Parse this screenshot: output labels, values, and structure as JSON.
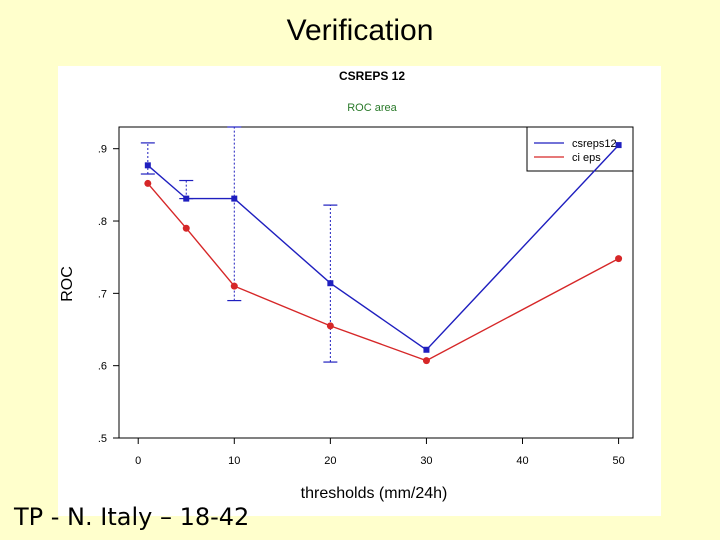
{
  "slide": {
    "title": "Verification",
    "footer": "TP - N. Italy – 18-42"
  },
  "chart_data": {
    "type": "line",
    "title": "CSREPS 12",
    "subtitle": "ROC area",
    "xlabel": "thresholds (mm/24h)",
    "ylabel": "ROC",
    "xlim": [
      -2,
      51.5
    ],
    "ylim": [
      0.5,
      0.93
    ],
    "x_ticks": [
      0,
      10,
      20,
      30,
      40,
      50
    ],
    "y_ticks": [
      0.5,
      0.6,
      0.7,
      0.8,
      0.9
    ],
    "y_tick_labels": [
      ".5",
      ".6",
      ".7",
      ".8",
      ".9"
    ],
    "grid": false,
    "legend": "top-right",
    "series": [
      {
        "name": "csreps12",
        "color": "#1f1fbf",
        "x": [
          1,
          5,
          10,
          20,
          30,
          50
        ],
        "y": [
          0.877,
          0.831,
          0.831,
          0.714,
          0.622,
          0.905
        ]
      },
      {
        "name": "ci eps",
        "color": "#d62728",
        "x": [
          1,
          5,
          10,
          20,
          30,
          50
        ],
        "y": [
          0.852,
          0.79,
          0.71,
          0.655,
          0.607,
          0.748
        ]
      }
    ],
    "error_bars": [
      {
        "x": 1,
        "low": 0.865,
        "high": 0.908
      },
      {
        "x": 5,
        "low": 0.831,
        "high": 0.856
      },
      {
        "x": 10,
        "low": 0.69,
        "high": 0.93
      },
      {
        "x": 20,
        "low": 0.605,
        "high": 0.822
      }
    ]
  }
}
